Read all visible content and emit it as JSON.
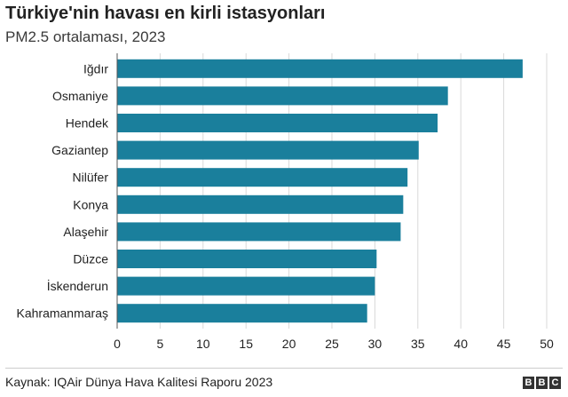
{
  "header": {
    "title": "Türkiye'nin havası en kirli istasyonları",
    "subtitle": "PM2.5 ortalaması, 2023"
  },
  "footer": {
    "source": "Kaynak: IQAir Dünya Hava Kalitesi Raporu 2023",
    "logo_letters": [
      "B",
      "B",
      "C"
    ]
  },
  "colors": {
    "bar": "#1a7f9c",
    "grid": "#d9d9d9",
    "text": "#222222"
  },
  "chart_data": {
    "type": "bar",
    "orientation": "horizontal",
    "title": "Türkiye'nin havası en kirli istasyonları",
    "subtitle": "PM2.5 ortalaması, 2023",
    "categories": [
      "Iğdır",
      "Osmaniye",
      "Hendek",
      "Gaziantep",
      "Nilüfer",
      "Konya",
      "Alaşehir",
      "Düzce",
      "İskenderun",
      "Kahramanmaraş"
    ],
    "values": [
      47.2,
      38.5,
      37.3,
      35.1,
      33.8,
      33.3,
      33.0,
      30.2,
      30.0,
      29.1
    ],
    "xlim": [
      0,
      50
    ],
    "xticks": [
      0,
      5,
      10,
      15,
      20,
      25,
      30,
      35,
      40,
      45,
      50
    ],
    "grid": true,
    "legend": "none"
  }
}
